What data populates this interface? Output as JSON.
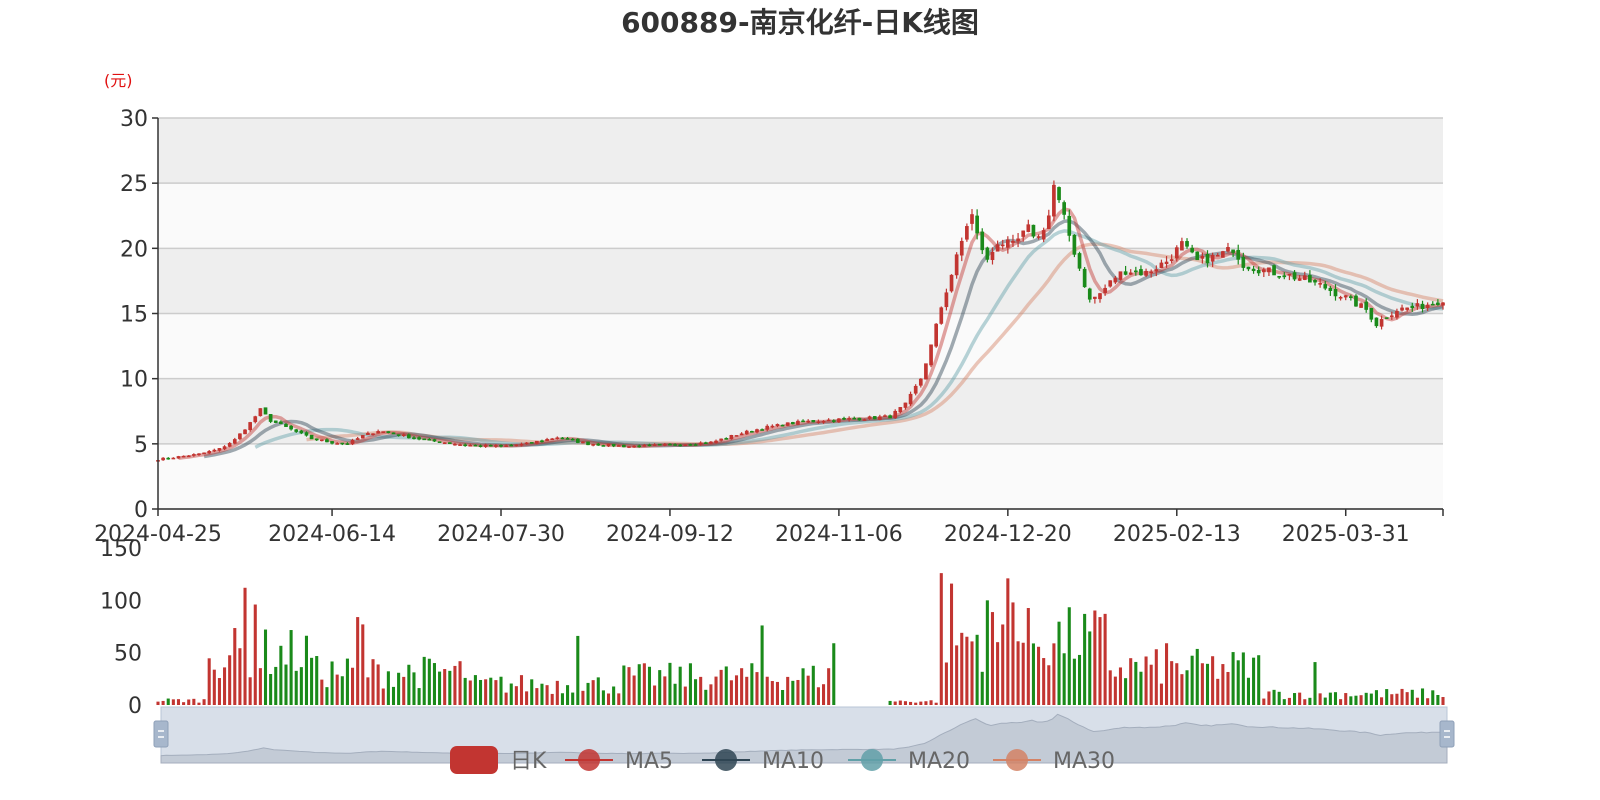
{
  "chart_data": {
    "type": "candlestick",
    "title": "600889-南京化纤-日K线图",
    "y_unit": "(元)",
    "price_axis": {
      "min": 0,
      "max": 30,
      "ticks": [
        0,
        5,
        10,
        15,
        20,
        25,
        30
      ]
    },
    "volume_axis": {
      "min": 0,
      "max": 150,
      "ticks": [
        0,
        50,
        100,
        150
      ]
    },
    "x_ticks": [
      "2024-04-25",
      "2024-06-14",
      "2024-07-30",
      "2024-09-12",
      "2024-11-06",
      "2024-12-20",
      "2025-02-13",
      "2025-03-31"
    ],
    "x_tick_index": [
      0,
      34,
      67,
      100,
      133,
      166,
      199,
      232
    ],
    "total_bars": 252,
    "legend": [
      {
        "name": "日K",
        "color": "#c23531",
        "kind": "box"
      },
      {
        "name": "MA5",
        "color": "#c23531",
        "kind": "line"
      },
      {
        "name": "MA10",
        "color": "#2f4554",
        "kind": "line"
      },
      {
        "name": "MA20",
        "color": "#61a0a8",
        "kind": "line"
      },
      {
        "name": "MA30",
        "color": "#d48265",
        "kind": "line"
      }
    ],
    "price_keypoints": [
      [
        0,
        3.8
      ],
      [
        8,
        4.2
      ],
      [
        12,
        4.6
      ],
      [
        15,
        5.3
      ],
      [
        18,
        6.6
      ],
      [
        20,
        7.6
      ],
      [
        22,
        6.8
      ],
      [
        26,
        6.1
      ],
      [
        30,
        5.4
      ],
      [
        34,
        5.1
      ],
      [
        37,
        5.0
      ],
      [
        40,
        5.6
      ],
      [
        43,
        6.0
      ],
      [
        47,
        5.7
      ],
      [
        52,
        5.3
      ],
      [
        60,
        4.9
      ],
      [
        67,
        4.8
      ],
      [
        72,
        5.0
      ],
      [
        78,
        5.5
      ],
      [
        84,
        5.0
      ],
      [
        92,
        4.8
      ],
      [
        100,
        4.9
      ],
      [
        108,
        5.1
      ],
      [
        113,
        5.7
      ],
      [
        118,
        6.2
      ],
      [
        124,
        6.6
      ],
      [
        130,
        6.8
      ],
      [
        140,
        7.0
      ],
      [
        143,
        7.1
      ],
      [
        146,
        8.0
      ],
      [
        149,
        10.0
      ],
      [
        151,
        12.5
      ],
      [
        152,
        14.0
      ],
      [
        153,
        15.5
      ],
      [
        155,
        18.0
      ],
      [
        157,
        20.5
      ],
      [
        158,
        21.8
      ],
      [
        159,
        22.5
      ],
      [
        160,
        21.0
      ],
      [
        162,
        19.0
      ],
      [
        164,
        20.5
      ],
      [
        167,
        20.2
      ],
      [
        170,
        21.5
      ],
      [
        172,
        20.8
      ],
      [
        174,
        22.5
      ],
      [
        175,
        24.8
      ],
      [
        176,
        23.5
      ],
      [
        178,
        21.0
      ],
      [
        180,
        18.5
      ],
      [
        182,
        16.0
      ],
      [
        184,
        16.5
      ],
      [
        187,
        17.8
      ],
      [
        189,
        18.3
      ],
      [
        193,
        18.1
      ],
      [
        197,
        19.0
      ],
      [
        200,
        20.3
      ],
      [
        203,
        19.0
      ],
      [
        207,
        19.4
      ],
      [
        210,
        20.0
      ],
      [
        212,
        18.8
      ],
      [
        216,
        18.3
      ],
      [
        220,
        18.0
      ],
      [
        224,
        17.6
      ],
      [
        228,
        17.0
      ],
      [
        232,
        16.2
      ],
      [
        236,
        15.3
      ],
      [
        238,
        14.2
      ],
      [
        240,
        14.8
      ],
      [
        242,
        15.3
      ],
      [
        246,
        15.5
      ],
      [
        249,
        15.8
      ],
      [
        251,
        16.1
      ]
    ],
    "ma_offsets": {
      "MA5": 2,
      "MA10": 5,
      "MA20": 10,
      "MA30": 16
    },
    "volume_segments": [
      {
        "range": [
          0,
          9
        ],
        "level": 5
      },
      {
        "range": [
          10,
          30
        ],
        "level": 55
      },
      {
        "range": [
          31,
          60
        ],
        "level": 35
      },
      {
        "range": [
          61,
          90
        ],
        "level": 22
      },
      {
        "range": [
          91,
          132
        ],
        "level": 30
      },
      {
        "range": [
          133,
          142
        ],
        "level": 0
      },
      {
        "range": [
          143,
          152
        ],
        "level": 4
      },
      {
        "range": [
          153,
          185
        ],
        "level": 70
      },
      {
        "range": [
          186,
          215
        ],
        "level": 40
      },
      {
        "range": [
          216,
          251
        ],
        "level": 12
      }
    ],
    "volume_spikes": [
      [
        17,
        112
      ],
      [
        19,
        96
      ],
      [
        39,
        84
      ],
      [
        40,
        77
      ],
      [
        82,
        66
      ],
      [
        118,
        76
      ],
      [
        132,
        59
      ],
      [
        153,
        126
      ],
      [
        155,
        116
      ],
      [
        162,
        100
      ],
      [
        166,
        121
      ],
      [
        167,
        98
      ],
      [
        197,
        59
      ],
      [
        226,
        41
      ]
    ]
  }
}
